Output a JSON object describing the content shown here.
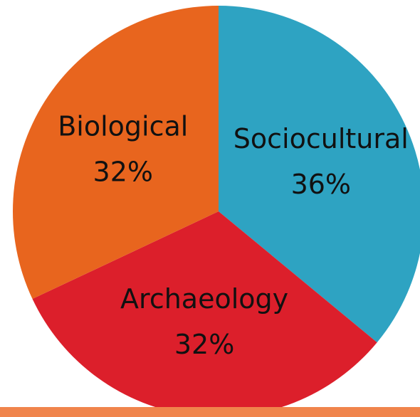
{
  "chart_data": {
    "type": "pie",
    "categories": [
      "Sociocultural",
      "Archaeology",
      "Biological"
    ],
    "values": [
      36,
      32,
      32
    ],
    "value_labels": [
      "36%",
      "32%",
      "32%"
    ],
    "colors": [
      "#2ea3c2",
      "#dc1f2b",
      "#e8651e"
    ]
  }
}
